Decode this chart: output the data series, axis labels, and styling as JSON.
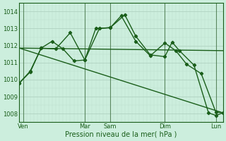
{
  "title": "",
  "xlabel": "Pression niveau de la mer( hPa )",
  "background_color": "#cceedd",
  "grid_color_major": "#aaccbb",
  "grid_color_minor": "#bbddcc",
  "line_color": "#1a5e1a",
  "ylim": [
    1007.5,
    1014.5
  ],
  "yticks": [
    1008,
    1009,
    1010,
    1011,
    1012,
    1013,
    1014
  ],
  "xlim": [
    0,
    28
  ],
  "day_labels": [
    "Ven",
    "Mar",
    "Sam",
    "Dim",
    "Lun"
  ],
  "day_positions": [
    0.5,
    9,
    12.5,
    20,
    27
  ],
  "vline_color": "#336633",
  "vline_positions": [
    0.5,
    9,
    12.5,
    20,
    27
  ],
  "series": [
    {
      "x": [
        0,
        28
      ],
      "y": [
        1011.85,
        1011.7
      ],
      "has_markers": false,
      "linewidth": 1.0
    },
    {
      "x": [
        0,
        28
      ],
      "y": [
        1011.85,
        1008.05
      ],
      "has_markers": false,
      "linewidth": 1.0
    },
    {
      "x": [
        0,
        1.5,
        3,
        5,
        7,
        9,
        11,
        12.5,
        14.5,
        16,
        18,
        20,
        21,
        22,
        24,
        26,
        27,
        28
      ],
      "y": [
        1009.8,
        1010.45,
        1011.85,
        1011.8,
        1012.75,
        1011.15,
        1013.0,
        1013.05,
        1013.8,
        1012.55,
        1011.45,
        1011.35,
        1012.2,
        1011.7,
        1010.85,
        1008.05,
        1007.9,
        1008.05
      ],
      "has_markers": true,
      "linewidth": 1.0
    },
    {
      "x": [
        0,
        1.5,
        3,
        4.5,
        6,
        7.5,
        9,
        10.5,
        12.5,
        14,
        16,
        18,
        20,
        21.5,
        23,
        25,
        27,
        28
      ],
      "y": [
        1009.8,
        1010.5,
        1011.85,
        1012.25,
        1011.8,
        1011.1,
        1011.15,
        1013.0,
        1013.05,
        1013.75,
        1012.25,
        1011.4,
        1012.15,
        1011.7,
        1010.9,
        1010.35,
        1008.1,
        1008.05
      ],
      "has_markers": true,
      "linewidth": 1.0
    }
  ]
}
